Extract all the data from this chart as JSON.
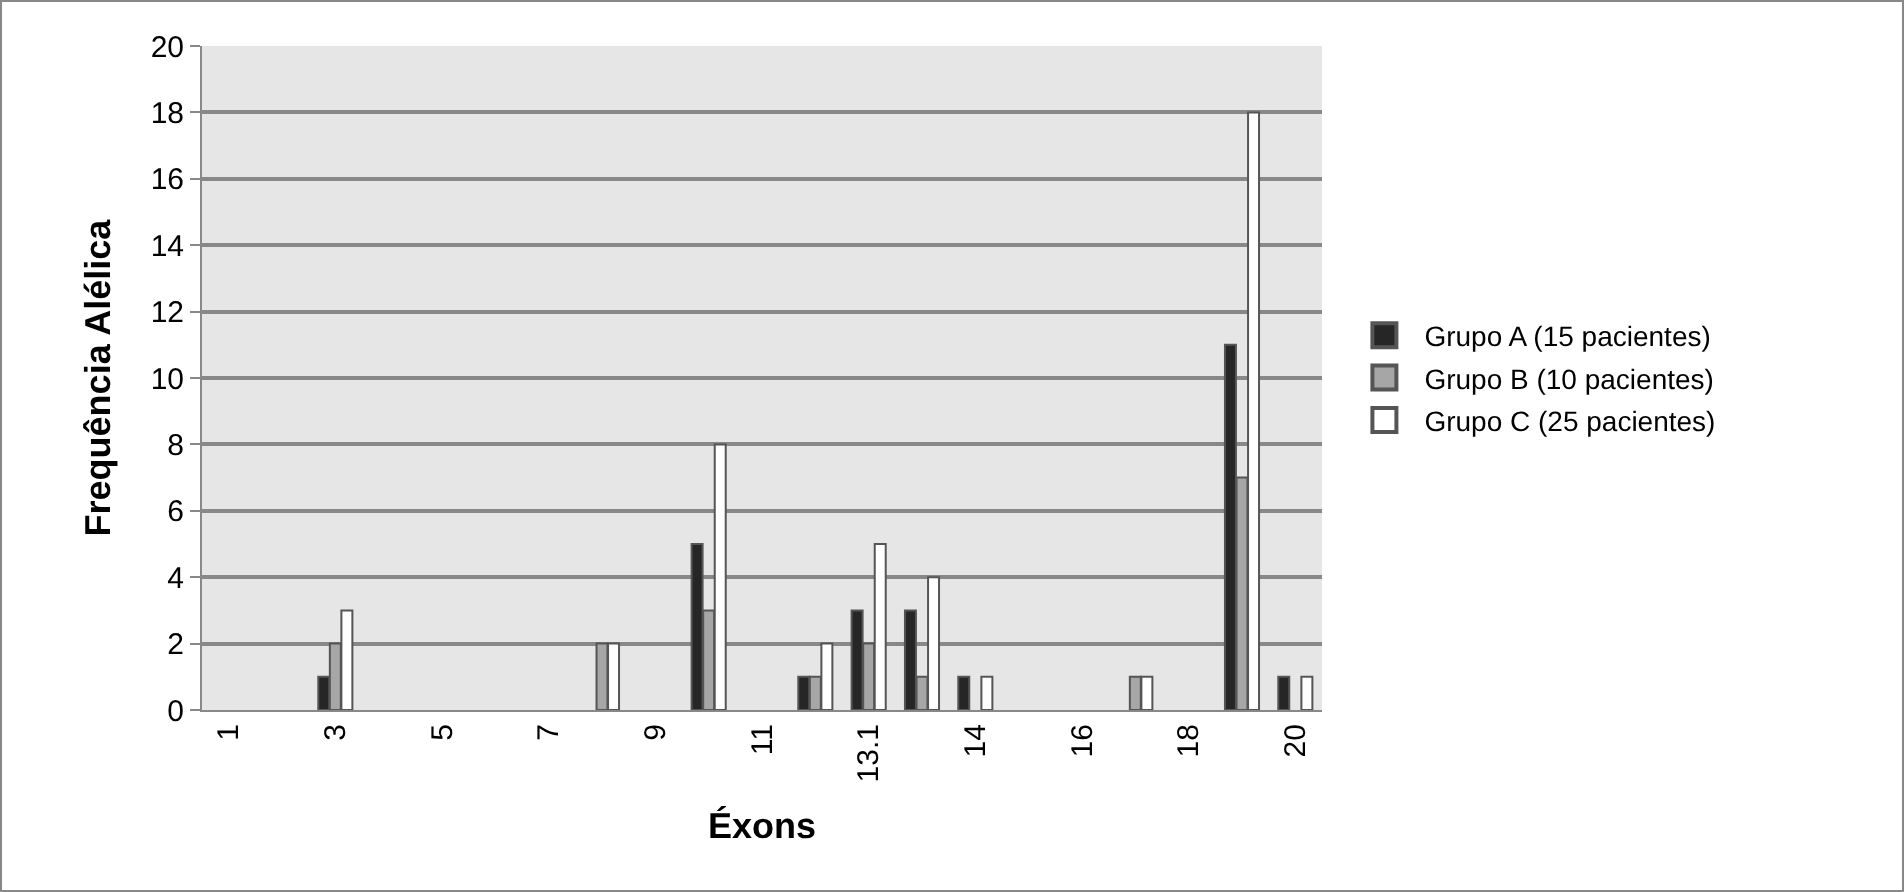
{
  "chart_data": {
    "type": "bar",
    "xlabel": "Éxons",
    "ylabel": "Frequência Alélica",
    "categories": [
      "1",
      null,
      "3",
      null,
      "5",
      null,
      "7",
      null,
      "9",
      null,
      "11",
      null,
      "13.1",
      null,
      "14",
      null,
      "16",
      null,
      "18",
      null,
      "20"
    ],
    "series": [
      {
        "name": "Grupo A (15 pacientes)",
        "color": "#262626",
        "values": [
          null,
          null,
          1,
          null,
          null,
          null,
          null,
          null,
          null,
          5,
          null,
          1,
          3,
          3,
          1,
          null,
          null,
          null,
          null,
          11,
          1
        ]
      },
      {
        "name": "Grupo B (10 pacientes)",
        "color": "#a6a6a6",
        "values": [
          null,
          null,
          2,
          null,
          null,
          null,
          null,
          2,
          null,
          3,
          null,
          1,
          2,
          1,
          null,
          null,
          null,
          1,
          null,
          7,
          null
        ]
      },
      {
        "name": "Grupo C (25 pacientes)",
        "color": "#ffffff",
        "values": [
          null,
          null,
          3,
          null,
          null,
          null,
          null,
          2,
          null,
          8,
          null,
          2,
          5,
          4,
          1,
          null,
          null,
          1,
          null,
          18,
          1
        ]
      }
    ],
    "ylim": [
      0,
      20
    ],
    "yticks": [
      0,
      2,
      4,
      6,
      8,
      10,
      12,
      14,
      16,
      18,
      20
    ],
    "grid": "y",
    "legend": "right"
  }
}
